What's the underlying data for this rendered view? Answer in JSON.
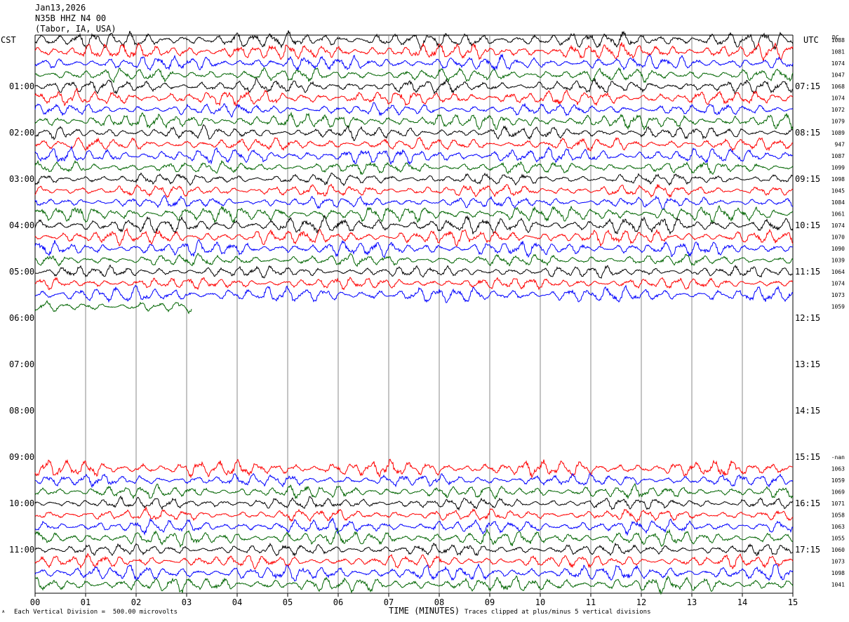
{
  "header": {
    "date": "Jan13,2026",
    "channel": "N35B HHZ N4 00",
    "location": "(Tabor, IA, USA)"
  },
  "left_zone": "CST",
  "right_zone": "UTC",
  "dc_header": "DC",
  "footer": {
    "vertical_division": "Each Vertical Division =  500.00 microvolts",
    "time_label": "TIME (MINUTES)",
    "clipping": "Traces clipped at plus/minus 5 vertical divisions",
    "corner": "ᴬ"
  },
  "colors": {
    "black": "#000000",
    "red": "#ff0000",
    "blue": "#0000ff",
    "green": "#006400"
  },
  "chart_data": {
    "type": "line",
    "xlabel": "TIME (MINUTES)",
    "xlim": [
      0,
      15
    ],
    "x_ticks": [
      "00",
      "01",
      "02",
      "03",
      "04",
      "05",
      "06",
      "07",
      "08",
      "09",
      "10",
      "11",
      "12",
      "13",
      "14",
      "15"
    ],
    "left_hour_labels": [
      {
        "row": 4,
        "text": "01:00"
      },
      {
        "row": 8,
        "text": "02:00"
      },
      {
        "row": 12,
        "text": "03:00"
      },
      {
        "row": 16,
        "text": "04:00"
      },
      {
        "row": 20,
        "text": "05:00"
      },
      {
        "row": 24,
        "text": "06:00"
      },
      {
        "row": 28,
        "text": "07:00"
      },
      {
        "row": 32,
        "text": "08:00"
      },
      {
        "row": 36,
        "text": "09:00"
      },
      {
        "row": 40,
        "text": "10:00"
      },
      {
        "row": 44,
        "text": "11:00"
      }
    ],
    "right_hour_labels": [
      {
        "row": 4,
        "text": "07:15"
      },
      {
        "row": 8,
        "text": "08:15"
      },
      {
        "row": 12,
        "text": "09:15"
      },
      {
        "row": 16,
        "text": "10:15"
      },
      {
        "row": 20,
        "text": "11:15"
      },
      {
        "row": 24,
        "text": "12:15"
      },
      {
        "row": 28,
        "text": "13:15"
      },
      {
        "row": 32,
        "text": "14:15"
      },
      {
        "row": 36,
        "text": "15:15"
      },
      {
        "row": 40,
        "text": "16:15"
      },
      {
        "row": 44,
        "text": "17:15"
      }
    ],
    "dc_offsets": [
      {
        "row": 0,
        "text": "1088"
      },
      {
        "row": 1,
        "text": "1081"
      },
      {
        "row": 2,
        "text": "1074"
      },
      {
        "row": 3,
        "text": "1047"
      },
      {
        "row": 4,
        "text": "1068"
      },
      {
        "row": 5,
        "text": "1074"
      },
      {
        "row": 6,
        "text": "1072"
      },
      {
        "row": 7,
        "text": "1079"
      },
      {
        "row": 8,
        "text": "1089"
      },
      {
        "row": 9,
        "text": "947"
      },
      {
        "row": 10,
        "text": "1087"
      },
      {
        "row": 11,
        "text": "1099"
      },
      {
        "row": 12,
        "text": "1098"
      },
      {
        "row": 13,
        "text": "1045"
      },
      {
        "row": 14,
        "text": "1084"
      },
      {
        "row": 15,
        "text": "1061"
      },
      {
        "row": 16,
        "text": "1074"
      },
      {
        "row": 17,
        "text": "1070"
      },
      {
        "row": 18,
        "text": "1090"
      },
      {
        "row": 19,
        "text": "1039"
      },
      {
        "row": 20,
        "text": "1064"
      },
      {
        "row": 21,
        "text": "1074"
      },
      {
        "row": 22,
        "text": "1073"
      },
      {
        "row": 23,
        "text": "1059"
      },
      {
        "row": 36,
        "text": "-nan"
      },
      {
        "row": 37,
        "text": "1063"
      },
      {
        "row": 38,
        "text": "1059"
      },
      {
        "row": 39,
        "text": "1069"
      },
      {
        "row": 40,
        "text": "1071"
      },
      {
        "row": 41,
        "text": "1058"
      },
      {
        "row": 42,
        "text": "1063"
      },
      {
        "row": 43,
        "text": "1055"
      },
      {
        "row": 44,
        "text": "1060"
      },
      {
        "row": 45,
        "text": "1073"
      },
      {
        "row": 46,
        "text": "1098"
      },
      {
        "row": 47,
        "text": "1041"
      }
    ],
    "traces": [
      {
        "row": 0,
        "color": "black",
        "start": 0,
        "end": 15
      },
      {
        "row": 1,
        "color": "red",
        "start": 0,
        "end": 15
      },
      {
        "row": 2,
        "color": "blue",
        "start": 0,
        "end": 15
      },
      {
        "row": 3,
        "color": "green",
        "start": 0,
        "end": 15
      },
      {
        "row": 4,
        "color": "black",
        "start": 0,
        "end": 15
      },
      {
        "row": 5,
        "color": "red",
        "start": 0,
        "end": 15
      },
      {
        "row": 6,
        "color": "blue",
        "start": 0,
        "end": 15
      },
      {
        "row": 7,
        "color": "green",
        "start": 0,
        "end": 15
      },
      {
        "row": 8,
        "color": "black",
        "start": 0,
        "end": 15
      },
      {
        "row": 9,
        "color": "red",
        "start": 0,
        "end": 15
      },
      {
        "row": 10,
        "color": "blue",
        "start": 0,
        "end": 15
      },
      {
        "row": 11,
        "color": "green",
        "start": 0,
        "end": 15
      },
      {
        "row": 12,
        "color": "black",
        "start": 0,
        "end": 15
      },
      {
        "row": 13,
        "color": "red",
        "start": 0,
        "end": 15
      },
      {
        "row": 14,
        "color": "blue",
        "start": 0,
        "end": 15
      },
      {
        "row": 15,
        "color": "green",
        "start": 0,
        "end": 15
      },
      {
        "row": 16,
        "color": "black",
        "start": 0,
        "end": 15
      },
      {
        "row": 17,
        "color": "red",
        "start": 0,
        "end": 15
      },
      {
        "row": 18,
        "color": "blue",
        "start": 0,
        "end": 15
      },
      {
        "row": 19,
        "color": "green",
        "start": 0,
        "end": 15
      },
      {
        "row": 20,
        "color": "black",
        "start": 0,
        "end": 15
      },
      {
        "row": 21,
        "color": "red",
        "start": 0,
        "end": 15
      },
      {
        "row": 22,
        "color": "blue",
        "start": 0,
        "end": 15
      },
      {
        "row": 23,
        "color": "green",
        "start": 0,
        "end": 3.1
      },
      {
        "row": 37,
        "color": "red",
        "start": 0,
        "end": 15
      },
      {
        "row": 38,
        "color": "blue",
        "start": 0,
        "end": 15
      },
      {
        "row": 39,
        "color": "green",
        "start": 0,
        "end": 15
      },
      {
        "row": 40,
        "color": "black",
        "start": 0,
        "end": 15
      },
      {
        "row": 41,
        "color": "red",
        "start": 0,
        "end": 15
      },
      {
        "row": 42,
        "color": "blue",
        "start": 0,
        "end": 15
      },
      {
        "row": 43,
        "color": "green",
        "start": 0,
        "end": 15
      },
      {
        "row": 44,
        "color": "black",
        "start": 0,
        "end": 15
      },
      {
        "row": 45,
        "color": "red",
        "start": 0,
        "end": 15
      },
      {
        "row": 46,
        "color": "blue",
        "start": 0,
        "end": 15
      },
      {
        "row": 47,
        "color": "green",
        "start": 0,
        "end": 15
      }
    ]
  }
}
